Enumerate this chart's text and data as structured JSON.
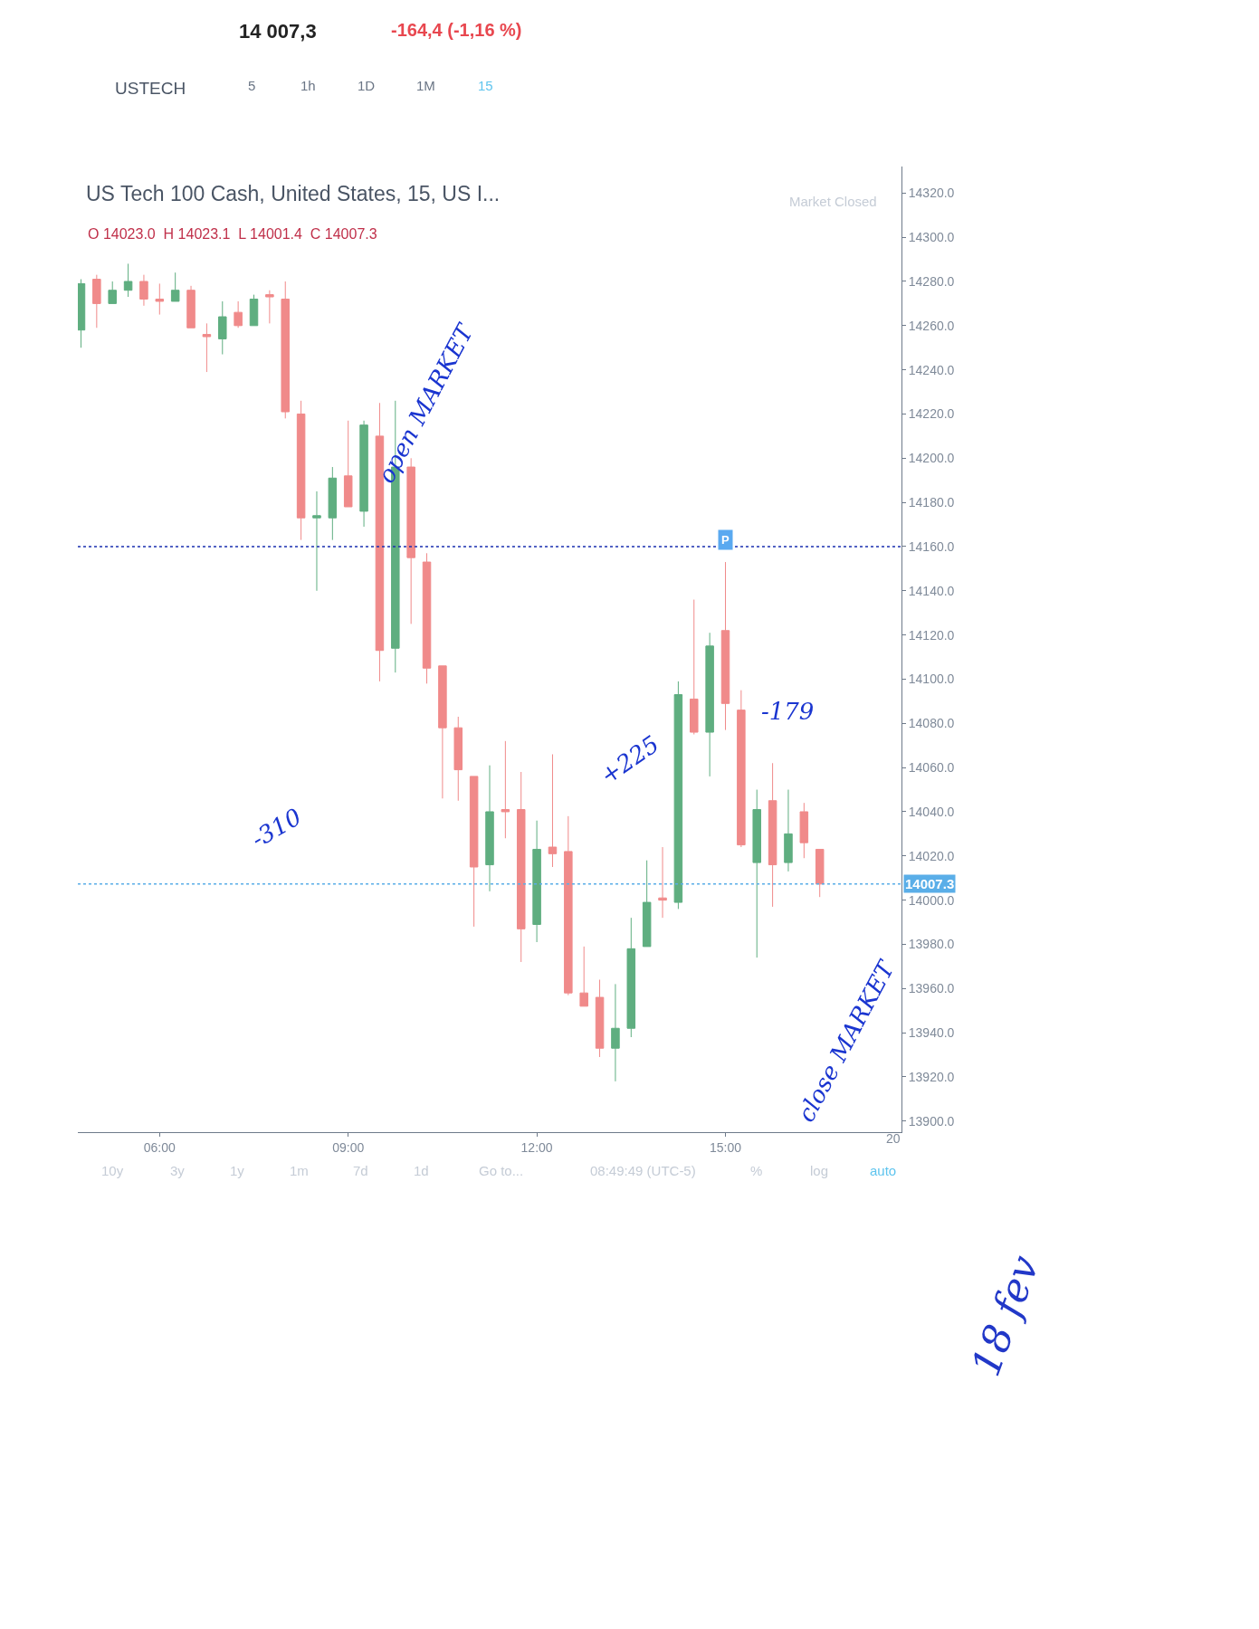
{
  "chart_data": {
    "type": "candlestick",
    "title": "US Tech 100 Cash, United States, 15, US I...",
    "subtitle": "O 14023.0  H 14023.1  L 14001.4  C 14007.3",
    "x": [
      4.75,
      5.0,
      5.25,
      5.5,
      5.75,
      6.0,
      6.25,
      6.5,
      6.75,
      7.0,
      7.25,
      7.5,
      7.75,
      8.0,
      8.25,
      8.5,
      8.75,
      9.0,
      9.25,
      9.5,
      9.75,
      10.0,
      10.25,
      10.5,
      10.75,
      11.0,
      11.25,
      11.5,
      11.75,
      12.0,
      12.25,
      12.5,
      12.75,
      13.0,
      13.25,
      13.5,
      13.75,
      14.0,
      14.25,
      14.5,
      14.75,
      15.0,
      15.25,
      15.5,
      15.75,
      16.0,
      16.25,
      16.5
    ],
    "ohlc": [
      [
        14258,
        14281,
        14250,
        14279
      ],
      [
        14281,
        14283,
        14259,
        14270
      ],
      [
        14270,
        14280,
        14270,
        14276
      ],
      [
        14276,
        14288,
        14273,
        14280
      ],
      [
        14280,
        14283,
        14269,
        14272
      ],
      [
        14272,
        14279,
        14265,
        14271
      ],
      [
        14271,
        14284,
        14271,
        14276
      ],
      [
        14276,
        14278,
        14259,
        14259
      ],
      [
        14256,
        14261,
        14239,
        14255
      ],
      [
        14254,
        14271,
        14247,
        14264
      ],
      [
        14266,
        14271,
        14259,
        14260
      ],
      [
        14260,
        14274,
        14260,
        14272
      ],
      [
        14274,
        14276,
        14261,
        14273
      ],
      [
        14272,
        14280,
        14218,
        14221
      ],
      [
        14220,
        14226,
        14163,
        14173
      ],
      [
        14173,
        14185,
        14140,
        14174
      ],
      [
        14173,
        14196,
        14163,
        14191
      ],
      [
        14192,
        14217,
        14178,
        14178
      ],
      [
        14176,
        14217,
        14169,
        14215
      ],
      [
        14210,
        14225,
        14099,
        14113
      ],
      [
        14114,
        14226,
        14103,
        14196
      ],
      [
        14196,
        14200,
        14125,
        14155
      ],
      [
        14153,
        14157,
        14098,
        14105
      ],
      [
        14106,
        14106,
        14046,
        14078
      ],
      [
        14078,
        14083,
        14045,
        14059
      ],
      [
        14056,
        14056,
        13988,
        14015
      ],
      [
        14016,
        14061,
        14004,
        14040
      ],
      [
        14041,
        14072,
        14028,
        14040
      ],
      [
        14041,
        14058,
        13972,
        13987
      ],
      [
        13989,
        14036,
        13981,
        14023
      ],
      [
        14024,
        14066,
        14015,
        14021
      ],
      [
        14022,
        14038,
        13957,
        13958
      ],
      [
        13958,
        13979,
        13952,
        13952
      ],
      [
        13956,
        13964,
        13929,
        13933
      ],
      [
        13933,
        13962,
        13918,
        13942
      ],
      [
        13942,
        13992,
        13938,
        13978
      ],
      [
        13979,
        14018,
        13979,
        13999
      ],
      [
        14001,
        14024,
        13992,
        14000
      ],
      [
        13999,
        14099,
        13996,
        14093
      ],
      [
        14091,
        14136,
        14075,
        14076
      ],
      [
        14076,
        14121,
        14056,
        14115
      ],
      [
        14122,
        14153,
        14077,
        14089
      ],
      [
        14086,
        14095,
        14024,
        14025
      ],
      [
        14017,
        14050,
        13974,
        14041
      ],
      [
        14045,
        14062,
        13997,
        14016
      ],
      [
        14017,
        14050,
        14013,
        14030
      ],
      [
        14040,
        14044,
        14019,
        14026
      ],
      [
        14023.0,
        14023.1,
        14001.4,
        14007.3
      ]
    ],
    "colors": [
      "#5fae80",
      "#f08a8a",
      "#5fae80",
      "#5fae80",
      "#f08a8a",
      "#f08a8a",
      "#5fae80",
      "#f08a8a",
      "#f08a8a",
      "#5fae80",
      "#f08a8a",
      "#5fae80",
      "#f08a8a",
      "#f08a8a",
      "#f08a8a",
      "#5fae80",
      "#5fae80",
      "#f08a8a",
      "#5fae80",
      "#f08a8a",
      "#5fae80",
      "#f08a8a",
      "#f08a8a",
      "#f08a8a",
      "#f08a8a",
      "#f08a8a",
      "#5fae80",
      "#f08a8a",
      "#f08a8a",
      "#5fae80",
      "#f08a8a",
      "#f08a8a",
      "#f08a8a",
      "#f08a8a",
      "#5fae80",
      "#5fae80",
      "#5fae80",
      "#f08a8a",
      "#5fae80",
      "#f08a8a",
      "#5fae80",
      "#f08a8a",
      "#f08a8a",
      "#5fae80",
      "#f08a8a",
      "#5fae80",
      "#f08a8a",
      "#f08a8a"
    ],
    "xlim": [
      4.7,
      17.8
    ],
    "xticks": [
      {
        "value": 6,
        "label": "06:00"
      },
      {
        "value": 9,
        "label": "09:00"
      },
      {
        "value": 12,
        "label": "12:00"
      },
      {
        "value": 15,
        "label": "15:00"
      }
    ],
    "ylim": [
      13895,
      14332
    ],
    "yticks": [
      {
        "value": 13900,
        "label": "13900.0"
      },
      {
        "value": 13920,
        "label": "13920.0"
      },
      {
        "value": 13940,
        "label": "13940.0"
      },
      {
        "value": 13960,
        "label": "13960.0"
      },
      {
        "value": 13980,
        "label": "13980.0"
      },
      {
        "value": 14000,
        "label": "14000.0"
      },
      {
        "value": 14020,
        "label": "14020.0"
      },
      {
        "value": 14040,
        "label": "14040.0"
      },
      {
        "value": 14060,
        "label": "14060.0"
      },
      {
        "value": 14080,
        "label": "14080.0"
      },
      {
        "value": 14100,
        "label": "14100.0"
      },
      {
        "value": 14120,
        "label": "14120.0"
      },
      {
        "value": 14140,
        "label": "14140.0"
      },
      {
        "value": 14160,
        "label": "14160.0"
      },
      {
        "value": 14180,
        "label": "14180.0"
      },
      {
        "value": 14200,
        "label": "14200.0"
      },
      {
        "value": 14220,
        "label": "14220.0"
      },
      {
        "value": 14240,
        "label": "14240.0"
      },
      {
        "value": 14260,
        "label": "14260.0"
      },
      {
        "value": 14280,
        "label": "14280.0"
      },
      {
        "value": 14300,
        "label": "14300.0"
      },
      {
        "value": 14320,
        "label": "14320.0"
      }
    ],
    "ref_lines": [
      {
        "axis": "y",
        "value": 14007.3,
        "label": "14007.3",
        "color": "#5aaee8",
        "line_style": "dotted"
      },
      {
        "axis": "y",
        "value": 14160,
        "color": "#1a2fb0",
        "line_style": "dotted"
      }
    ],
    "annotations": [
      "14 007,3",
      "-164,4 (-1,16 %)",
      "USTECH",
      "5",
      "1h",
      "1D",
      "1M",
      "15",
      "Market Closed",
      "10y",
      "3y",
      "1y",
      "1m",
      "7d",
      "1d",
      "Go to...",
      "08:49:49 (UTC-5)",
      "%",
      "log",
      "auto",
      "18 fev",
      "open MARKET",
      "-310",
      "+225",
      "-179",
      "close MARKET",
      "20",
      {
        "text": "P",
        "x": 15,
        "y": 14163
      }
    ]
  }
}
